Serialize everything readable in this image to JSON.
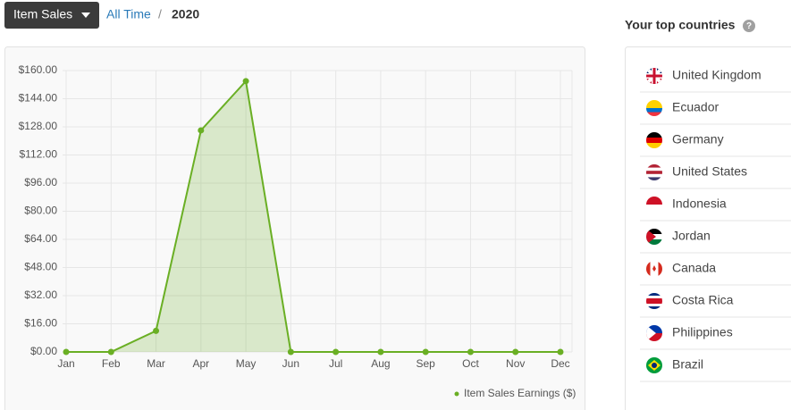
{
  "toolbar": {
    "dropdown": "Item Sales",
    "breadcrumb": [
      "All Time",
      "/",
      "2020"
    ]
  },
  "chart_data": {
    "type": "line",
    "categories": [
      "Jan",
      "Feb",
      "Mar",
      "Apr",
      "May",
      "Jun",
      "Jul",
      "Aug",
      "Sep",
      "Oct",
      "Nov",
      "Dec"
    ],
    "series": [
      {
        "name": "Item Sales Earnings ($)",
        "color": "#6aaf24",
        "values": [
          0,
          0,
          12,
          126,
          154,
          0,
          0,
          0,
          0,
          0,
          0,
          0
        ]
      }
    ],
    "ylim": [
      0,
      160
    ],
    "yticks": [
      {
        "value": 0,
        "label": "$0.00"
      },
      {
        "value": 16,
        "label": "$16.00"
      },
      {
        "value": 32,
        "label": "$32.00"
      },
      {
        "value": 48,
        "label": "$48.00"
      },
      {
        "value": 64,
        "label": "$64.00"
      },
      {
        "value": 80,
        "label": "$80.00"
      },
      {
        "value": 96,
        "label": "$96.00"
      },
      {
        "value": 112,
        "label": "$112.00"
      },
      {
        "value": 128,
        "label": "$128.00"
      },
      {
        "value": 144,
        "label": "$144.00"
      },
      {
        "value": 160,
        "label": "$160.00"
      }
    ],
    "grid": true,
    "area": true,
    "legend": "bottom-right"
  },
  "sidebar": {
    "title": "Your top countries",
    "help": "?",
    "countries": [
      "United Kingdom",
      "Ecuador",
      "Germany",
      "United States",
      "Indonesia",
      "Jordan",
      "Canada",
      "Costa Rica",
      "Philippines",
      "Brazil"
    ]
  }
}
